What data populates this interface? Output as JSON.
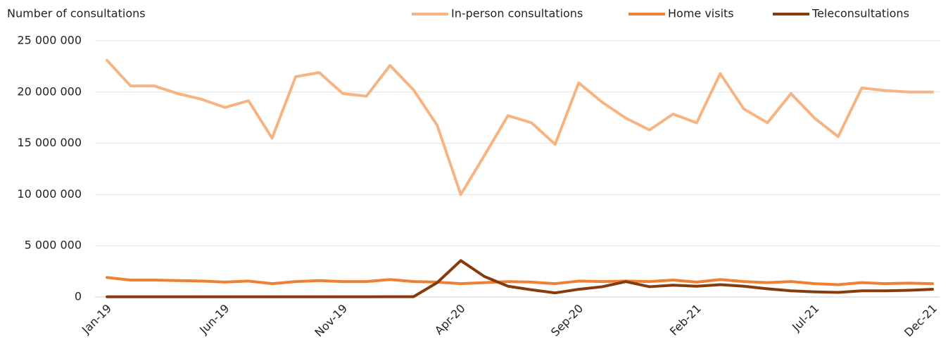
{
  "chart_data": {
    "type": "line",
    "y_axis_label": "Number of consultations",
    "categories": [
      "Jan-19",
      null,
      null,
      null,
      null,
      "Jun-19",
      null,
      null,
      null,
      null,
      "Nov-19",
      null,
      null,
      null,
      null,
      "Apr-20",
      null,
      null,
      null,
      null,
      "Sep-20",
      null,
      null,
      null,
      null,
      "Feb-21",
      null,
      null,
      null,
      null,
      "Jul-21",
      null,
      null,
      null,
      null,
      "Dec-21"
    ],
    "series": [
      {
        "name": "In-person consultations",
        "color": "#f6b483",
        "values": [
          23100000,
          20600000,
          20600000,
          19850000,
          19300000,
          18500000,
          19150000,
          15500000,
          21500000,
          21900000,
          19850000,
          19600000,
          22600000,
          20200000,
          16750000,
          10000000,
          13800000,
          17700000,
          17000000,
          14900000,
          20900000,
          19000000,
          17450000,
          16300000,
          17850000,
          17000000,
          21800000,
          18350000,
          17000000,
          19850000,
          17450000,
          15650000,
          20400000,
          20150000,
          20000000,
          20000000
        ]
      },
      {
        "name": "Home visits",
        "color": "#ee8033",
        "values": [
          1900000,
          1650000,
          1650000,
          1600000,
          1550000,
          1450000,
          1550000,
          1300000,
          1500000,
          1600000,
          1500000,
          1500000,
          1700000,
          1500000,
          1450000,
          1300000,
          1400000,
          1500000,
          1450000,
          1300000,
          1550000,
          1500000,
          1550000,
          1500000,
          1650000,
          1450000,
          1700000,
          1500000,
          1400000,
          1500000,
          1300000,
          1200000,
          1400000,
          1300000,
          1350000,
          1300000
        ]
      },
      {
        "name": "Teleconsultations",
        "color": "#843c0c",
        "values": [
          20000,
          20000,
          20000,
          20000,
          20000,
          20000,
          20000,
          20000,
          20000,
          20000,
          20000,
          20000,
          30000,
          30000,
          1400000,
          3550000,
          2000000,
          1050000,
          700000,
          400000,
          750000,
          1000000,
          1500000,
          1000000,
          1150000,
          1050000,
          1200000,
          1050000,
          800000,
          600000,
          500000,
          450000,
          600000,
          600000,
          650000,
          750000
        ]
      }
    ],
    "ylim": [
      0,
      25000000
    ],
    "yticks": [
      0,
      {
        "value": 5000000,
        "label": "5 000 000"
      },
      {
        "value": 10000000,
        "label": "10 000 000"
      },
      {
        "value": 15000000,
        "label": "15 000 000"
      },
      {
        "value": 20000000,
        "label": "20 000 000"
      },
      {
        "value": 25000000,
        "label": "25 000 000"
      }
    ],
    "grid": true,
    "legend": "top"
  }
}
